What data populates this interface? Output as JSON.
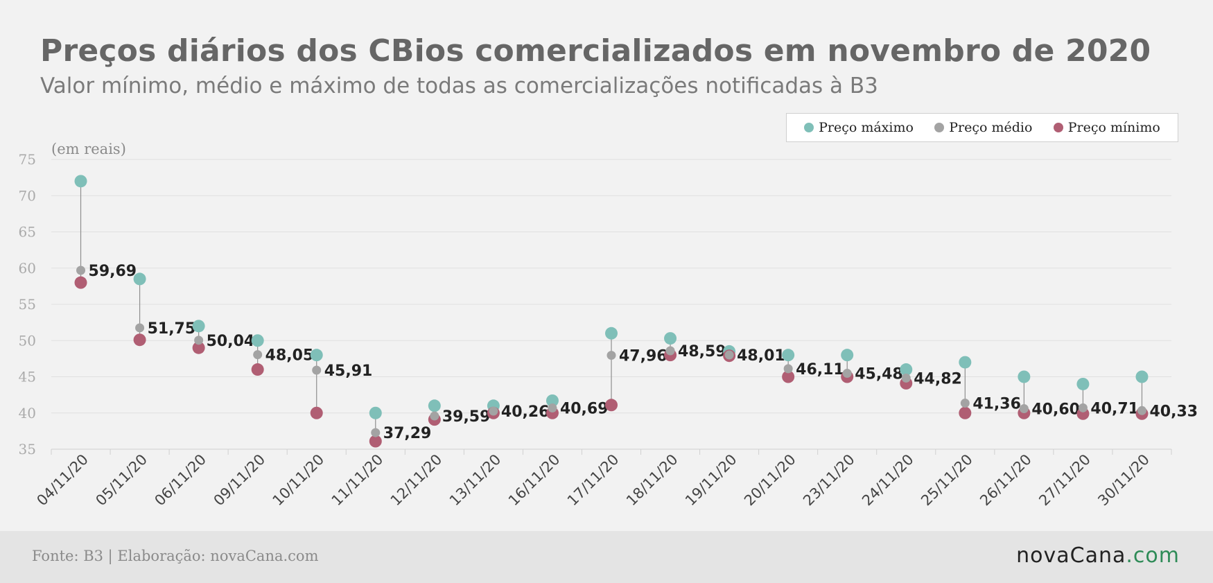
{
  "title": "Preços diários dos CBios comercializados em novembro de 2020",
  "subtitle": "Valor mínimo, médio e máximo de todas as comercializações notificadas à B3",
  "footer": {
    "source": "Fonte: B3 | Elaboração: novaCana.com",
    "brand_part1": "novaCana",
    "brand_part2": ".com"
  },
  "colors": {
    "max": "#7fbfb8",
    "avg": "#a3a3a3",
    "min": "#b05e73",
    "grid": "#e0e0e0",
    "axis_text": "#aaaaaa"
  },
  "chart_data": {
    "type": "scatter",
    "ylabel": "(em reais)",
    "ylim": [
      35,
      75
    ],
    "yticks": [
      35,
      40,
      45,
      50,
      55,
      60,
      65,
      70,
      75
    ],
    "grid": true,
    "legend_position": "top-right",
    "categories": [
      "04/11/20",
      "05/11/20",
      "06/11/20",
      "09/11/20",
      "10/11/20",
      "11/11/20",
      "12/11/20",
      "13/11/20",
      "16/11/20",
      "17/11/20",
      "18/11/20",
      "19/11/20",
      "20/11/20",
      "23/11/20",
      "24/11/20",
      "25/11/20",
      "26/11/20",
      "27/11/20",
      "30/11/20"
    ],
    "series": [
      {
        "name": "Preço máximo",
        "values": [
          72.0,
          58.5,
          52.0,
          50.0,
          48.0,
          40.0,
          41.0,
          41.0,
          41.7,
          51.0,
          50.3,
          48.5,
          48.0,
          48.0,
          46.0,
          47.0,
          45.0,
          44.0,
          45.0
        ]
      },
      {
        "name": "Preço médio",
        "values": [
          59.69,
          51.75,
          50.04,
          48.05,
          45.91,
          37.29,
          39.59,
          40.26,
          40.69,
          47.96,
          48.59,
          48.01,
          46.11,
          45.48,
          44.82,
          41.36,
          40.6,
          40.71,
          40.33
        ]
      },
      {
        "name": "Preço mínimo",
        "values": [
          58.0,
          50.1,
          49.0,
          46.0,
          40.0,
          36.1,
          39.1,
          40.0,
          40.0,
          41.1,
          48.0,
          47.9,
          45.0,
          45.0,
          44.1,
          40.0,
          40.0,
          39.9,
          39.9
        ]
      }
    ],
    "data_labels": [
      "59,69",
      "51,75",
      "50,04",
      "48,05",
      "45,91",
      "37,29",
      "39,59",
      "40,26",
      "40,69",
      "47,96",
      "48,59",
      "48,01",
      "46,11",
      "45,48",
      "44,82",
      "41,36",
      "40,60",
      "40,71",
      "40,33"
    ]
  }
}
